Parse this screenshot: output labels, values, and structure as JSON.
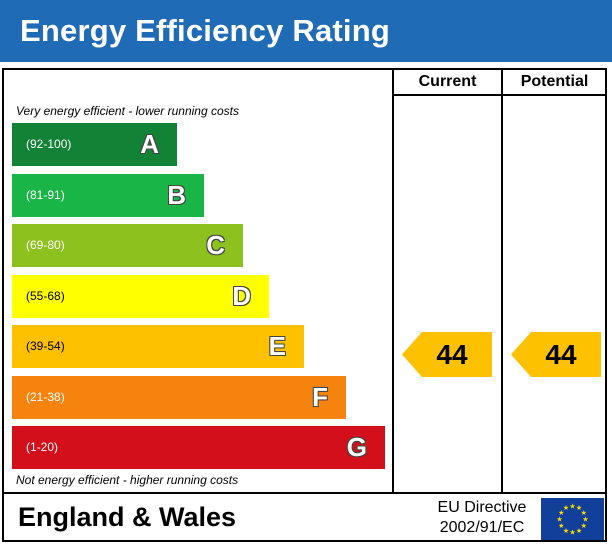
{
  "header": {
    "title": "Energy Efficiency Rating"
  },
  "columns": {
    "current": "Current",
    "potential": "Potential"
  },
  "notes": {
    "top": "Very energy efficient - lower running costs",
    "bottom": "Not energy efficient - higher running costs"
  },
  "footer": {
    "region": "England & Wales",
    "directive_line1": "EU Directive",
    "directive_line2": "2002/91/EC"
  },
  "chart_data": {
    "type": "bar",
    "title": "Energy Efficiency Rating",
    "categories": [
      "A",
      "B",
      "C",
      "D",
      "E",
      "F",
      "G"
    ],
    "ranges": [
      "(92-100)",
      "(81-91)",
      "(69-80)",
      "(55-68)",
      "(39-54)",
      "(21-38)",
      "(1-20)"
    ],
    "colors": [
      "#128336",
      "#1ab547",
      "#8dc21e",
      "#ffff00",
      "#fdc100",
      "#f7830f",
      "#d30f1c"
    ],
    "range_text_colors": [
      "#ffffff",
      "#ffffff",
      "#ffffff",
      "#000000",
      "#000000",
      "#ffffff",
      "#ffffff"
    ],
    "current": 44,
    "potential": 44,
    "indicator_color": "#fdc100"
  }
}
